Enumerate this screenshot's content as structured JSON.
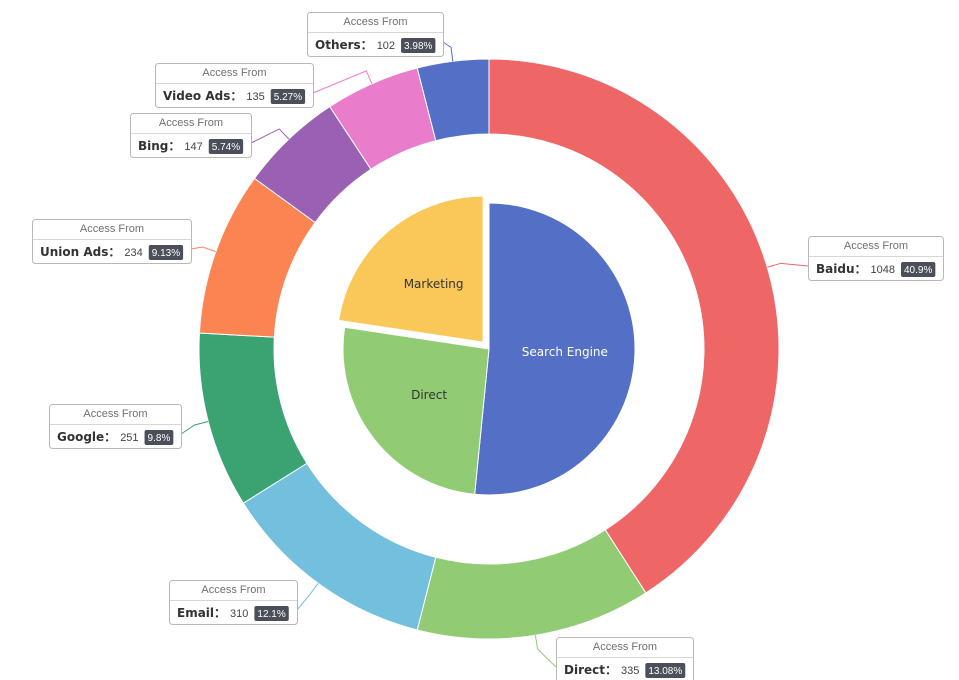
{
  "chart_data": {
    "type": "pie",
    "inner": {
      "slices": [
        {
          "name": "Search Engine",
          "value": 1548,
          "color": "#5470c6",
          "label_color": "#ffffff"
        },
        {
          "name": "Direct",
          "value": 775,
          "color": "#91cc75",
          "label_color": "#333333"
        },
        {
          "name": "Marketing",
          "value": 679,
          "color": "#fac858",
          "label_color": "#333333",
          "selected": true
        }
      ]
    },
    "outer": {
      "label_title": "Access From",
      "slices": [
        {
          "name": "Baidu",
          "value": 1048,
          "percent": "40.9%",
          "color": "#ee6666"
        },
        {
          "name": "Direct",
          "value": 335,
          "percent": "13.08%",
          "color": "#91cc75"
        },
        {
          "name": "Email",
          "value": 310,
          "percent": "12.1%",
          "color": "#73c0de"
        },
        {
          "name": "Google",
          "value": 251,
          "percent": "9.8%",
          "color": "#3ba272"
        },
        {
          "name": "Union Ads",
          "value": 234,
          "percent": "9.13%",
          "color": "#fc8452"
        },
        {
          "name": "Bing",
          "value": 147,
          "percent": "5.74%",
          "color": "#9a60b4"
        },
        {
          "name": "Video Ads",
          "value": 135,
          "percent": "5.27%",
          "color": "#ea7ccc"
        },
        {
          "name": "Others",
          "value": 102,
          "percent": "3.98%",
          "color": "#5470c6"
        }
      ]
    }
  }
}
